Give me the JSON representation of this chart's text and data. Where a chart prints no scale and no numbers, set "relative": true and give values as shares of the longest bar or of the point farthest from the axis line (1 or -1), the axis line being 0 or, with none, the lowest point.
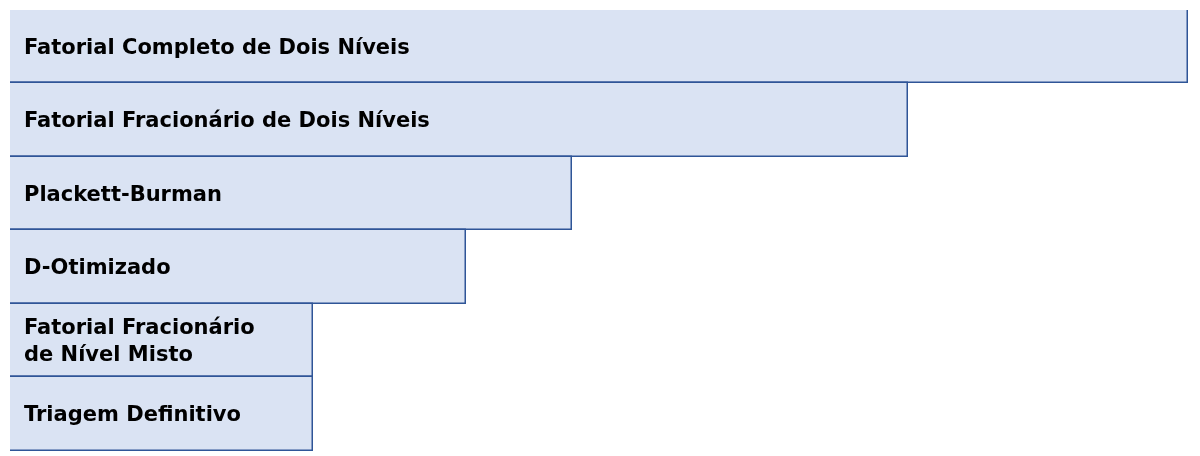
{
  "chart_data": {
    "type": "bar",
    "orientation": "horizontal",
    "relative": true,
    "categories": [
      "Fatorial Completo de Dois Níveis",
      "Fatorial Fracionário de Dois Níveis",
      "Plackett-Burman",
      "D-Otimizado",
      "Fatorial Fracionário de Nível Misto",
      "Triagem Definitivo"
    ],
    "values": [
      1,
      0.762,
      0.477,
      0.387,
      0.257,
      0.257
    ],
    "color": "#dae3f3"
  }
}
